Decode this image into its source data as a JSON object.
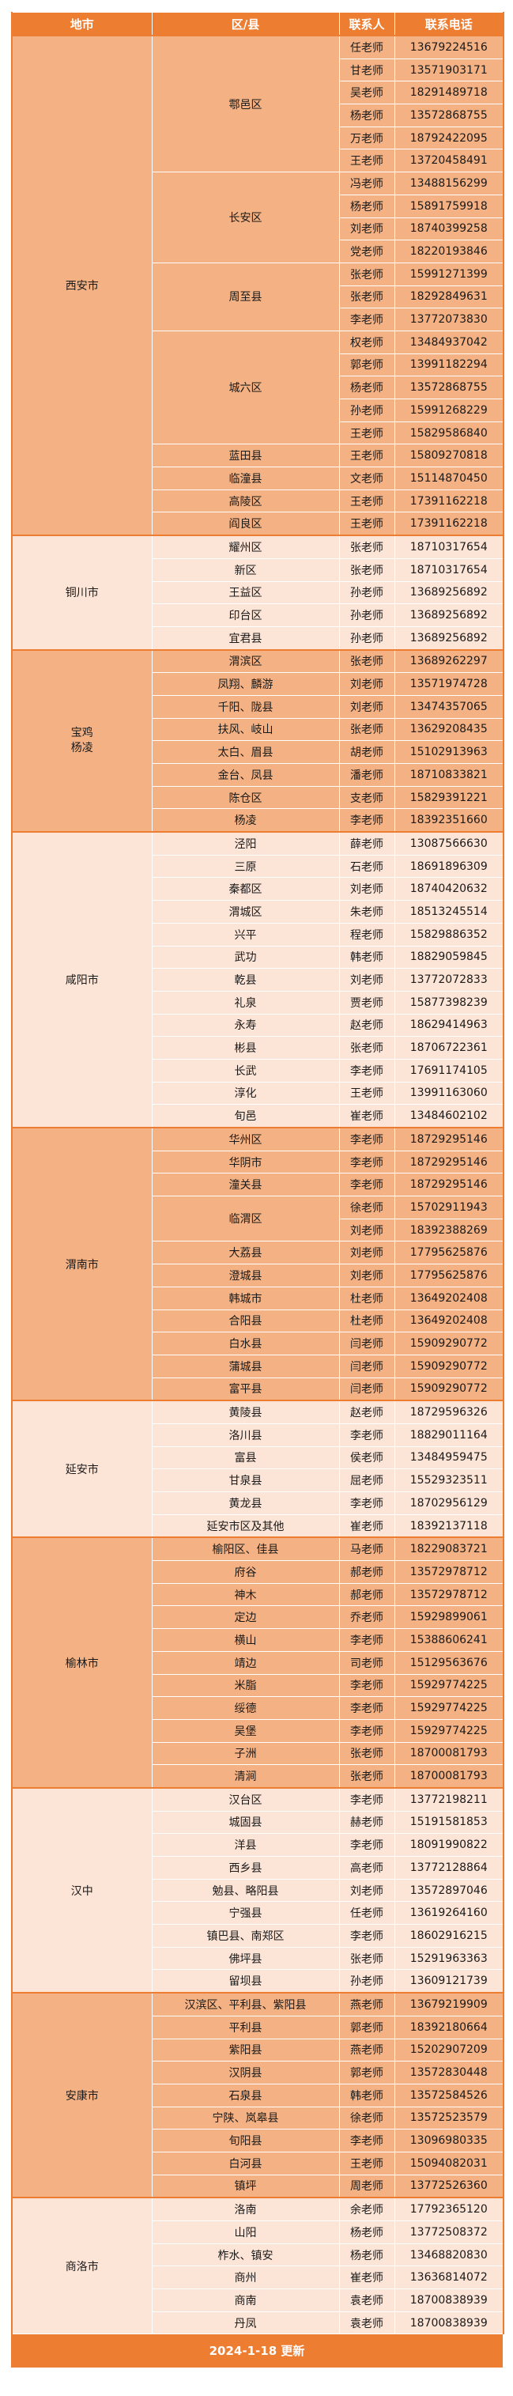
{
  "header": {
    "city": "地市",
    "district": "区/县",
    "contact": "联系人",
    "phone": "联系电话"
  },
  "colors": {
    "header": "#ED7D31",
    "dark_row": "#F4B183",
    "light_row": "#FCE4D6"
  },
  "groups": [
    {
      "city": "西安市",
      "shade": "dark",
      "districts": [
        {
          "name": "鄠邑区",
          "contacts": [
            [
              "任老师",
              "13679224516"
            ],
            [
              "甘老师",
              "13571903171"
            ],
            [
              "吴老师",
              "18291489718"
            ],
            [
              "杨老师",
              "13572868755"
            ],
            [
              "万老师",
              "18792422095"
            ],
            [
              "王老师",
              "13720458491"
            ]
          ]
        },
        {
          "name": "长安区",
          "contacts": [
            [
              "冯老师",
              "13488156299"
            ],
            [
              "杨老师",
              "15891759918"
            ],
            [
              "刘老师",
              "18740399258"
            ],
            [
              "党老师",
              "18220193846"
            ]
          ]
        },
        {
          "name": "周至县",
          "contacts": [
            [
              "张老师",
              "15991271399"
            ],
            [
              "张老师",
              "18292849631"
            ],
            [
              "李老师",
              "13772073830"
            ]
          ]
        },
        {
          "name": "城六区",
          "contacts": [
            [
              "权老师",
              "13484937042"
            ],
            [
              "郭老师",
              "13991182294"
            ],
            [
              "杨老师",
              "13572868755"
            ],
            [
              "孙老师",
              "15991268229"
            ],
            [
              "王老师",
              "15829586840"
            ]
          ]
        },
        {
          "name": "蓝田县",
          "contacts": [
            [
              "王老师",
              "15809270818"
            ]
          ]
        },
        {
          "name": "临潼县",
          "contacts": [
            [
              "文老师",
              "15114870450"
            ]
          ]
        },
        {
          "name": "高陵区",
          "contacts": [
            [
              "王老师",
              "17391162218"
            ]
          ]
        },
        {
          "name": "阎良区",
          "contacts": [
            [
              "王老师",
              "17391162218"
            ]
          ]
        }
      ]
    },
    {
      "city": "铜川市",
      "shade": "light",
      "districts": [
        {
          "name": "耀州区",
          "contacts": [
            [
              "张老师",
              "18710317654"
            ]
          ]
        },
        {
          "name": "新区",
          "contacts": [
            [
              "张老师",
              "18710317654"
            ]
          ]
        },
        {
          "name": "王益区",
          "contacts": [
            [
              "孙老师",
              "13689256892"
            ]
          ]
        },
        {
          "name": "印台区",
          "contacts": [
            [
              "孙老师",
              "13689256892"
            ]
          ]
        },
        {
          "name": "宜君县",
          "contacts": [
            [
              "孙老师",
              "13689256892"
            ]
          ]
        }
      ]
    },
    {
      "city": "宝鸡\n杨凌",
      "shade": "dark",
      "districts": [
        {
          "name": "渭滨区",
          "contacts": [
            [
              "张老师",
              "13689262297"
            ]
          ]
        },
        {
          "name": "凤翔、麟游",
          "contacts": [
            [
              "刘老师",
              "13571974728"
            ]
          ]
        },
        {
          "name": "千阳、陇县",
          "contacts": [
            [
              "刘老师",
              "13474357065"
            ]
          ]
        },
        {
          "name": "扶风、岐山",
          "contacts": [
            [
              "张老师",
              "13629208435"
            ]
          ]
        },
        {
          "name": "太白、眉县",
          "contacts": [
            [
              "胡老师",
              "15102913963"
            ]
          ]
        },
        {
          "name": "金台、凤县",
          "contacts": [
            [
              "潘老师",
              "18710833821"
            ]
          ]
        },
        {
          "name": "陈仓区",
          "contacts": [
            [
              "支老师",
              "15829391221"
            ]
          ]
        },
        {
          "name": "杨凌",
          "contacts": [
            [
              "李老师",
              "18392351660"
            ]
          ]
        }
      ]
    },
    {
      "city": "咸阳市",
      "shade": "light",
      "districts": [
        {
          "name": "泾阳",
          "contacts": [
            [
              "薛老师",
              "13087566630"
            ]
          ]
        },
        {
          "name": "三原",
          "contacts": [
            [
              "石老师",
              "18691896309"
            ]
          ]
        },
        {
          "name": "秦都区",
          "contacts": [
            [
              "刘老师",
              "18740420632"
            ]
          ]
        },
        {
          "name": "渭城区",
          "contacts": [
            [
              "朱老师",
              "18513245514"
            ]
          ]
        },
        {
          "name": "兴平",
          "contacts": [
            [
              "程老师",
              "15829886352"
            ]
          ]
        },
        {
          "name": "武功",
          "contacts": [
            [
              "韩老师",
              "18829059845"
            ]
          ]
        },
        {
          "name": "乾县",
          "contacts": [
            [
              "刘老师",
              "13772072833"
            ]
          ]
        },
        {
          "name": "礼泉",
          "contacts": [
            [
              "贾老师",
              "15877398239"
            ]
          ]
        },
        {
          "name": "永寿",
          "contacts": [
            [
              "赵老师",
              "18629414963"
            ]
          ]
        },
        {
          "name": "彬县",
          "contacts": [
            [
              "张老师",
              "18706722361"
            ]
          ]
        },
        {
          "name": "长武",
          "contacts": [
            [
              "李老师",
              "17691174105"
            ]
          ]
        },
        {
          "name": "淳化",
          "contacts": [
            [
              "王老师",
              "13991163060"
            ]
          ]
        },
        {
          "name": "旬邑",
          "contacts": [
            [
              "崔老师",
              "13484602102"
            ]
          ]
        }
      ]
    },
    {
      "city": "渭南市",
      "shade": "dark",
      "districts": [
        {
          "name": "华州区",
          "contacts": [
            [
              "李老师",
              "18729295146"
            ]
          ]
        },
        {
          "name": "华阴市",
          "contacts": [
            [
              "李老师",
              "18729295146"
            ]
          ]
        },
        {
          "name": "潼关县",
          "contacts": [
            [
              "李老师",
              "18729295146"
            ]
          ]
        },
        {
          "name": "临渭区",
          "contacts": [
            [
              "徐老师",
              "15702911943"
            ],
            [
              "刘老师",
              "18392388269"
            ]
          ]
        },
        {
          "name": "大荔县",
          "contacts": [
            [
              "刘老师",
              "17795625876"
            ]
          ]
        },
        {
          "name": "澄城县",
          "contacts": [
            [
              "刘老师",
              "17795625876"
            ]
          ]
        },
        {
          "name": "韩城市",
          "contacts": [
            [
              "杜老师",
              "13649202408"
            ]
          ]
        },
        {
          "name": "合阳县",
          "contacts": [
            [
              "杜老师",
              "13649202408"
            ]
          ]
        },
        {
          "name": "白水县",
          "contacts": [
            [
              "闫老师",
              "15909290772"
            ]
          ]
        },
        {
          "name": "蒲城县",
          "contacts": [
            [
              "闫老师",
              "15909290772"
            ]
          ]
        },
        {
          "name": "富平县",
          "contacts": [
            [
              "闫老师",
              "15909290772"
            ]
          ]
        }
      ]
    },
    {
      "city": "延安市",
      "shade": "light",
      "districts": [
        {
          "name": "黄陵县",
          "contacts": [
            [
              "赵老师",
              "18729596326"
            ]
          ]
        },
        {
          "name": "洛川县",
          "contacts": [
            [
              "李老师",
              "18829011164"
            ]
          ]
        },
        {
          "name": "富县",
          "contacts": [
            [
              "侯老师",
              "13484959475"
            ]
          ]
        },
        {
          "name": "甘泉县",
          "contacts": [
            [
              "屈老师",
              "15529323511"
            ]
          ]
        },
        {
          "name": "黄龙县",
          "contacts": [
            [
              "李老师",
              "18702956129"
            ]
          ]
        },
        {
          "name": "延安市区及其他",
          "contacts": [
            [
              "崔老师",
              "18392137118"
            ]
          ]
        }
      ]
    },
    {
      "city": "榆林市",
      "shade": "dark",
      "districts": [
        {
          "name": "榆阳区、佳县",
          "contacts": [
            [
              "马老师",
              "18229083721"
            ]
          ]
        },
        {
          "name": "府谷",
          "contacts": [
            [
              "郝老师",
              "13572978712"
            ]
          ]
        },
        {
          "name": "神木",
          "contacts": [
            [
              "郝老师",
              "13572978712"
            ]
          ]
        },
        {
          "name": "定边",
          "contacts": [
            [
              "乔老师",
              "15929899061"
            ]
          ]
        },
        {
          "name": "横山",
          "contacts": [
            [
              "李老师",
              "15388606241"
            ]
          ]
        },
        {
          "name": "靖边",
          "contacts": [
            [
              "司老师",
              "15129563676"
            ]
          ]
        },
        {
          "name": "米脂",
          "contacts": [
            [
              "李老师",
              "15929774225"
            ]
          ]
        },
        {
          "name": "绥德",
          "contacts": [
            [
              "李老师",
              "15929774225"
            ]
          ]
        },
        {
          "name": "吴堡",
          "contacts": [
            [
              "李老师",
              "15929774225"
            ]
          ]
        },
        {
          "name": "子洲",
          "contacts": [
            [
              "张老师",
              "18700081793"
            ]
          ]
        },
        {
          "name": "清涧",
          "contacts": [
            [
              "张老师",
              "18700081793"
            ]
          ]
        }
      ]
    },
    {
      "city": "汉中",
      "shade": "light",
      "districts": [
        {
          "name": "汉台区",
          "contacts": [
            [
              "李老师",
              "13772198211"
            ]
          ]
        },
        {
          "name": "城固县",
          "contacts": [
            [
              "赫老师",
              "15191581853"
            ]
          ]
        },
        {
          "name": "洋县",
          "contacts": [
            [
              "李老师",
              "18091990822"
            ]
          ]
        },
        {
          "name": "西乡县",
          "contacts": [
            [
              "高老师",
              "13772128864"
            ]
          ]
        },
        {
          "name": "勉县、略阳县",
          "contacts": [
            [
              "刘老师",
              "13572897046"
            ]
          ]
        },
        {
          "name": "宁强县",
          "contacts": [
            [
              "任老师",
              "13619264160"
            ]
          ]
        },
        {
          "name": "镇巴县、南郑区",
          "contacts": [
            [
              "李老师",
              "18602916215"
            ]
          ]
        },
        {
          "name": "佛坪县",
          "contacts": [
            [
              "张老师",
              "15291963363"
            ]
          ]
        },
        {
          "name": "留坝县",
          "contacts": [
            [
              "孙老师",
              "13609121739"
            ]
          ]
        }
      ]
    },
    {
      "city": "安康市",
      "shade": "dark",
      "districts": [
        {
          "name": "汉滨区、平利县、紫阳县",
          "contacts": [
            [
              "燕老师",
              "13679219909"
            ]
          ]
        },
        {
          "name": "平利县",
          "contacts": [
            [
              "郭老师",
              "18392180664"
            ]
          ]
        },
        {
          "name": "紫阳县",
          "contacts": [
            [
              "燕老师",
              "15202907209"
            ]
          ]
        },
        {
          "name": "汉阴县",
          "contacts": [
            [
              "郭老师",
              "13572830448"
            ]
          ]
        },
        {
          "name": "石泉县",
          "contacts": [
            [
              "韩老师",
              "13572584526"
            ]
          ]
        },
        {
          "name": "宁陕、岚皋县",
          "contacts": [
            [
              "徐老师",
              "13572523579"
            ]
          ]
        },
        {
          "name": "旬阳县",
          "contacts": [
            [
              "李老师",
              "13096980335"
            ]
          ]
        },
        {
          "name": "白河县",
          "contacts": [
            [
              "王老师",
              "15094082031"
            ]
          ]
        },
        {
          "name": "镇坪",
          "contacts": [
            [
              "周老师",
              "13772526360"
            ]
          ]
        }
      ]
    },
    {
      "city": "商洛市",
      "shade": "light",
      "districts": [
        {
          "name": "洛南",
          "contacts": [
            [
              "余老师",
              "17792365120"
            ]
          ]
        },
        {
          "name": "山阳",
          "contacts": [
            [
              "杨老师",
              "13772508372"
            ]
          ]
        },
        {
          "name": "柞水、镇安",
          "contacts": [
            [
              "杨老师",
              "13468820830"
            ]
          ]
        },
        {
          "name": "商州",
          "contacts": [
            [
              "崔老师",
              "13636814072"
            ]
          ]
        },
        {
          "name": "商南",
          "contacts": [
            [
              "袁老师",
              "18700838939"
            ]
          ]
        },
        {
          "name": "丹凤",
          "contacts": [
            [
              "袁老师",
              "18700838939"
            ]
          ]
        }
      ]
    }
  ],
  "footer": {
    "text": "2024-1-18  更新"
  }
}
